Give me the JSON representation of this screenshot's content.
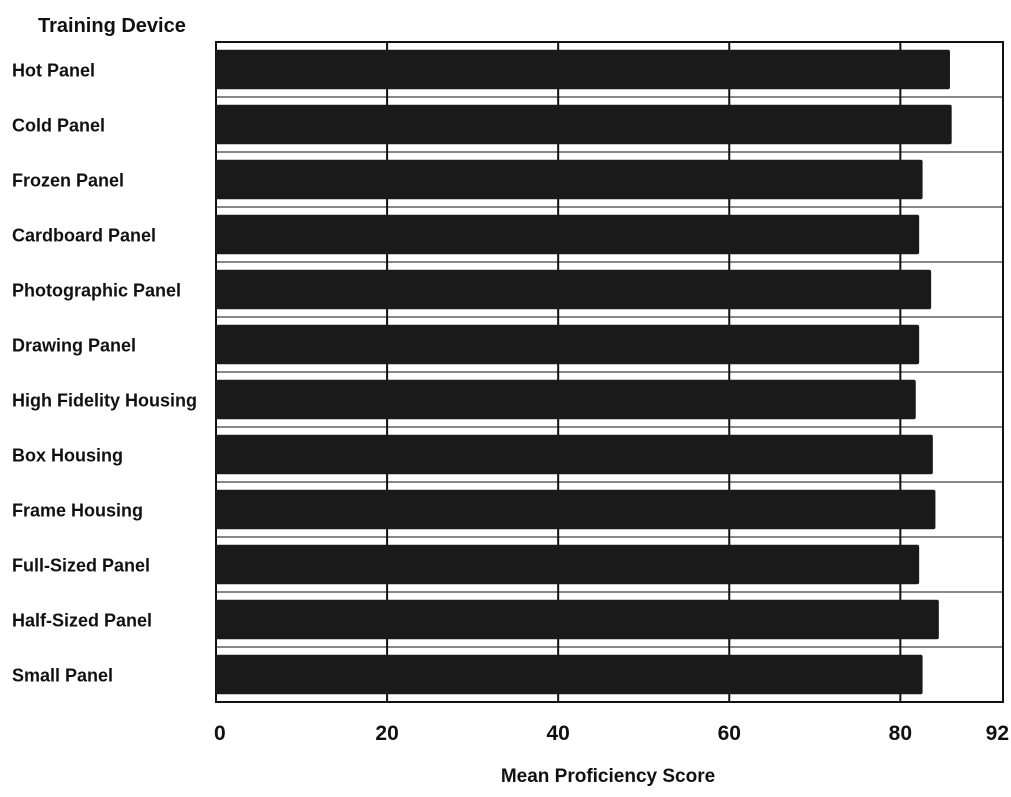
{
  "chart_data": {
    "type": "bar",
    "orientation": "horizontal",
    "title": "Training Device",
    "xlabel": "Mean Proficiency Score",
    "ylabel": "Training Device",
    "xlim": [
      0,
      92
    ],
    "xticks": [
      0,
      20,
      40,
      60,
      80,
      92
    ],
    "grid": true,
    "categories": [
      "Hot Panel",
      "Cold Panel",
      "Frozen Panel",
      "Cardboard Panel",
      "Photographic Panel",
      "Drawing Panel",
      "High Fidelity Housing",
      "Box Housing",
      "Frame Housing",
      "Full-Sized Panel",
      "Half-Sized Panel",
      "Small Panel"
    ],
    "values": [
      85.8,
      86.0,
      82.6,
      82.2,
      83.6,
      82.2,
      81.8,
      83.8,
      84.1,
      82.2,
      84.5,
      82.6
    ],
    "bar_color": "#1a1a1a"
  }
}
